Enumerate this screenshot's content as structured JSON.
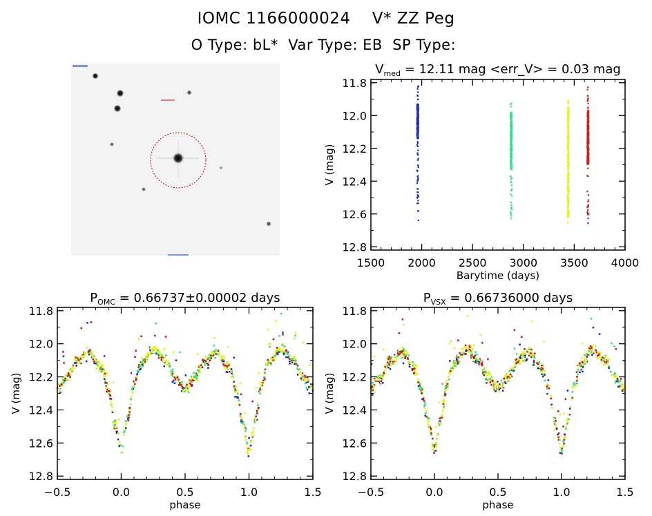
{
  "header": {
    "object_id": "IOMC 1166000024",
    "star_name": "V* ZZ Peg",
    "o_type_label": "O Type:",
    "o_type": "bL*",
    "var_type_label": "Var Type:",
    "var_type": "EB",
    "sp_type_label": "SP Type:",
    "sp_type": ""
  },
  "finder": {
    "description": "greyscale sky finder image centered on target star with dashed red circle",
    "circle_color": "#c00000",
    "corner_labels_unreadable": true
  },
  "chart_data": [
    {
      "id": "timeline",
      "type": "scatter",
      "title_main": "V",
      "title_sub": "med",
      "title_rest": " = 12.11 mag <err_V> = 0.03 mag",
      "xlabel": "Barytime (days)",
      "ylabel": "V (mag)",
      "xlim": [
        1500,
        4000
      ],
      "ylim": [
        12.82,
        11.78
      ],
      "y_inverted": true,
      "xticks": [
        1500,
        2000,
        2500,
        3000,
        3500,
        4000
      ],
      "xtick_labels": [
        "1500",
        "2000",
        "2500",
        "3000",
        "3500",
        "4000"
      ],
      "yticks": [
        11.8,
        12.0,
        12.2,
        12.4,
        12.6,
        12.8
      ],
      "ytick_labels": [
        "11.8",
        "12.0",
        "12.2",
        "12.4",
        "12.6",
        "12.8"
      ],
      "points_synthetic": true,
      "series_note": "season columns: estimated center time and magnitude range read from image; points inside ranges are filled in",
      "series": [
        {
          "name": "season-1",
          "color": "#1c2fbf",
          "t": 1960,
          "vmin": 11.81,
          "vmax": 12.67,
          "dense_min": 11.93,
          "dense_max": 12.14
        },
        {
          "name": "season-2",
          "color": "#2ee38c",
          "t": 2880,
          "vmin": 11.92,
          "vmax": 12.64,
          "dense_min": 11.98,
          "dense_max": 12.33
        },
        {
          "name": "season-3",
          "color": "#e6f21c",
          "t": 3440,
          "vmin": 11.9,
          "vmax": 12.66,
          "dense_min": 11.95,
          "dense_max": 12.62
        },
        {
          "name": "season-4",
          "color": "#cc1c1c",
          "t": 3635,
          "vmin": 11.8,
          "vmax": 12.68,
          "dense_min": 11.98,
          "dense_max": 12.3
        }
      ]
    },
    {
      "id": "phase-omc",
      "type": "scatter",
      "title_main": "P",
      "title_sub": "OMC",
      "title_rest": " = 0.66737±0.00002 days",
      "xlabel": "phase",
      "ylabel": "V (mag)",
      "xlim": [
        -0.5,
        1.5
      ],
      "ylim": [
        12.82,
        11.78
      ],
      "y_inverted": true,
      "xticks": [
        -0.5,
        0.0,
        0.5,
        1.0,
        1.5
      ],
      "xtick_labels": [
        "−0.5",
        "0.0",
        "0.5",
        "1.0",
        "1.5"
      ],
      "yticks": [
        11.8,
        12.0,
        12.2,
        12.4,
        12.6,
        12.8
      ],
      "ytick_labels": [
        "11.8",
        "12.0",
        "12.2",
        "12.4",
        "12.6",
        "12.8"
      ],
      "points_synthetic": true,
      "light_curve_model": {
        "note": "estimated anchor points read from the image; actual plotted points are not tabulated here",
        "phase": [
          0.0,
          0.05,
          0.1,
          0.15,
          0.25,
          0.35,
          0.42,
          0.5,
          0.58,
          0.65,
          0.75,
          0.85,
          0.9,
          0.95,
          1.0
        ],
        "vmag": [
          12.64,
          12.45,
          12.24,
          12.12,
          12.03,
          12.1,
          12.2,
          12.27,
          12.2,
          12.1,
          12.05,
          12.15,
          12.28,
          12.48,
          12.64
        ],
        "scatter": 0.03
      },
      "series_colors": [
        "#1c2fbf",
        "#2ee38c",
        "#e6f21c",
        "#cc1c1c"
      ]
    },
    {
      "id": "phase-vsx",
      "type": "scatter",
      "title_main": "P",
      "title_sub": "VSX",
      "title_rest": " = 0.66736000 days",
      "xlabel": "phase",
      "ylabel": "V (mag)",
      "xlim": [
        -0.5,
        1.5
      ],
      "ylim": [
        12.82,
        11.78
      ],
      "y_inverted": true,
      "xticks": [
        -0.5,
        0.0,
        0.5,
        1.0,
        1.5
      ],
      "xtick_labels": [
        "−0.5",
        "0.0",
        "0.5",
        "1.0",
        "1.5"
      ],
      "yticks": [
        11.8,
        12.0,
        12.2,
        12.4,
        12.6,
        12.8
      ],
      "ytick_labels": [
        "11.8",
        "12.0",
        "12.2",
        "12.4",
        "12.6",
        "12.8"
      ],
      "points_synthetic": true,
      "light_curve_model": {
        "note": "estimated anchor points read from the image; actual plotted points are not tabulated here",
        "phase": [
          0.0,
          0.05,
          0.1,
          0.15,
          0.25,
          0.35,
          0.42,
          0.5,
          0.58,
          0.65,
          0.75,
          0.85,
          0.9,
          0.95,
          1.0
        ],
        "vmag": [
          12.64,
          12.45,
          12.24,
          12.12,
          12.03,
          12.1,
          12.2,
          12.27,
          12.2,
          12.1,
          12.05,
          12.15,
          12.28,
          12.48,
          12.64
        ],
        "scatter": 0.035
      },
      "series_colors": [
        "#1c2fbf",
        "#2ee38c",
        "#e6f21c",
        "#cc1c1c"
      ]
    }
  ]
}
